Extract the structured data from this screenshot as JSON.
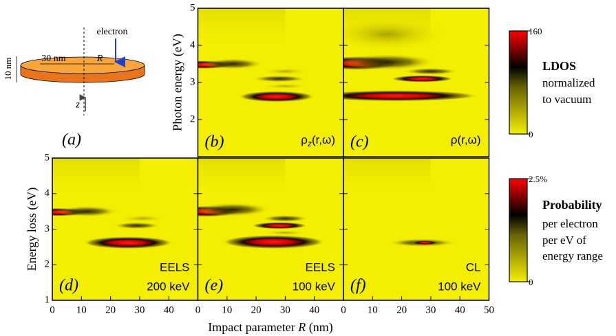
{
  "figure": {
    "diagram": {
      "label": "(a)",
      "electron": "electron",
      "thickness": "10 nm",
      "radius": "30 nm",
      "impact": "R",
      "axis": "z"
    },
    "top_row": {
      "y_title": "Photon energy (eV)",
      "ylim": [
        1,
        5
      ],
      "yticks": [
        2,
        3,
        4,
        5
      ],
      "xlim": [
        0,
        50
      ],
      "panels": [
        {
          "label": "(b)",
          "caption": [
            {
              "text": "ρ"
            },
            {
              "text": "z",
              "sub": true
            },
            {
              "text": "(r,ω)"
            }
          ]
        },
        {
          "label": "(c)",
          "caption": [
            {
              "text": "ρ(r,ω)"
            }
          ]
        }
      ]
    },
    "bottom_row": {
      "y_title": "Energy loss (eV)",
      "ylim": [
        1,
        5
      ],
      "yticks": [
        1,
        2,
        3,
        4,
        5
      ],
      "xlim": [
        0,
        50
      ],
      "x_title": [
        {
          "text": "Impact parameter "
        },
        {
          "text": "R",
          "italic": true
        },
        {
          "text": " (nm)"
        }
      ],
      "panels": [
        {
          "label": "(d)",
          "caption": [
            "EELS",
            "200 keV"
          ],
          "xticks": [
            0,
            10,
            20,
            30,
            40
          ]
        },
        {
          "label": "(e)",
          "caption": [
            "EELS",
            "100 keV"
          ],
          "xticks": [
            0,
            10,
            20,
            30,
            40
          ]
        },
        {
          "label": "(f)",
          "caption": [
            "CL",
            "100 keV"
          ],
          "xticks": [
            0,
            10,
            20,
            30,
            40,
            50
          ]
        }
      ]
    },
    "colorbars": [
      {
        "lim": [
          0,
          160
        ],
        "ticks": [
          0,
          160
        ],
        "title": "LDOS",
        "lines": [
          "normalized",
          "to vacuum"
        ]
      },
      {
        "lim": [
          0,
          2.5
        ],
        "ticks": [
          0,
          {
            "value": 2.5,
            "label": "2.5%"
          }
        ],
        "title": "Probability",
        "lines": [
          "per electron",
          "per eV of",
          "energy range"
        ]
      }
    ]
  }
}
